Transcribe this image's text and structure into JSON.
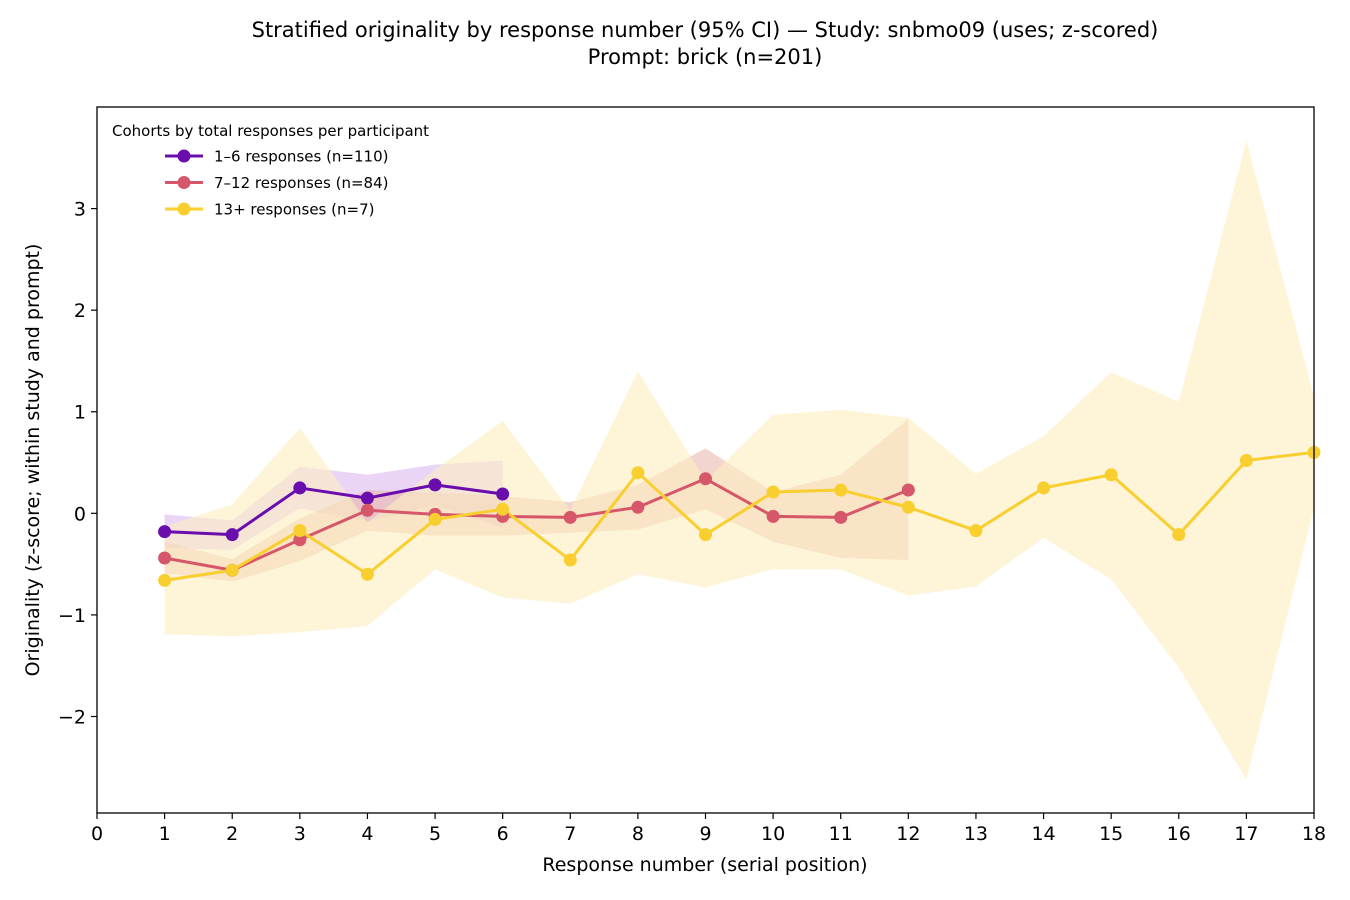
{
  "chart_data": {
    "type": "line",
    "title_line1": "Stratified originality by response number (95% CI) — Study: snbmo09 (uses; z-scored)",
    "title_line2": "Prompt: brick (n=201)",
    "xlabel": "Response number (serial position)",
    "ylabel": "Originality (z-score; within study and prompt)",
    "xlim": [
      0,
      18
    ],
    "ylim": [
      -2.95,
      4.0
    ],
    "xticks": [
      0,
      1,
      2,
      3,
      4,
      5,
      6,
      7,
      8,
      9,
      10,
      11,
      12,
      13,
      14,
      15,
      16,
      17,
      18
    ],
    "yticks": [
      -2,
      -1,
      0,
      1,
      2,
      3
    ],
    "ytick_labels": [
      "−2",
      "−1",
      "0",
      "1",
      "2",
      "3"
    ],
    "legend_title": "Cohorts by total responses per participant",
    "legend_position": "upper-left",
    "grid": false,
    "series": [
      {
        "name": "1–6 responses (n=110)",
        "color": "#6a0dad",
        "band_color": "#d9b3f0",
        "x": [
          1,
          2,
          3,
          4,
          5,
          6
        ],
        "y": [
          -0.18,
          -0.21,
          0.25,
          0.15,
          0.28,
          0.19
        ],
        "ci_low": [
          -0.34,
          -0.36,
          0.05,
          -0.08,
          0.08,
          -0.14
        ],
        "ci_high": [
          -0.01,
          -0.07,
          0.46,
          0.38,
          0.48,
          0.52
        ]
      },
      {
        "name": "7–12 responses (n=84)",
        "color": "#d6566a",
        "band_color": "#e7b3a6",
        "x": [
          1,
          2,
          3,
          4,
          5,
          6,
          7,
          8,
          9,
          10,
          11,
          12
        ],
        "y": [
          -0.44,
          -0.56,
          -0.26,
          0.03,
          -0.01,
          -0.03,
          -0.04,
          0.06,
          0.34,
          -0.03,
          -0.04,
          0.23
        ],
        "ci_low": [
          -0.59,
          -0.67,
          -0.47,
          -0.17,
          -0.22,
          -0.22,
          -0.19,
          -0.16,
          0.04,
          -0.28,
          -0.44,
          -0.46
        ],
        "ci_high": [
          -0.28,
          -0.45,
          -0.05,
          0.23,
          0.2,
          0.17,
          0.11,
          0.28,
          0.64,
          0.21,
          0.38,
          0.93
        ]
      },
      {
        "name": "13+ responses (n=7)",
        "color": "#f9ce2f",
        "band_color": "#fdefbf",
        "x": [
          1,
          2,
          3,
          4,
          5,
          6,
          7,
          8,
          9,
          10,
          11,
          12,
          13,
          14,
          15,
          16,
          17,
          18
        ],
        "y": [
          -0.66,
          -0.56,
          -0.17,
          -0.6,
          -0.06,
          0.04,
          -0.46,
          0.4,
          -0.21,
          0.21,
          0.23,
          0.06,
          -0.17,
          0.25,
          0.38,
          -0.21,
          0.52,
          0.6
        ],
        "ci_low": [
          -1.19,
          -1.21,
          -1.17,
          -1.11,
          -0.55,
          -0.83,
          -0.89,
          -0.6,
          -0.73,
          -0.55,
          -0.55,
          -0.81,
          -0.72,
          -0.24,
          -0.65,
          -1.52,
          -2.62,
          0.05
        ],
        "ci_high": [
          -0.13,
          0.09,
          0.84,
          -0.09,
          0.43,
          0.91,
          0.03,
          1.4,
          0.32,
          0.97,
          1.02,
          0.94,
          0.39,
          0.76,
          1.39,
          1.1,
          3.67,
          1.15
        ]
      }
    ]
  }
}
